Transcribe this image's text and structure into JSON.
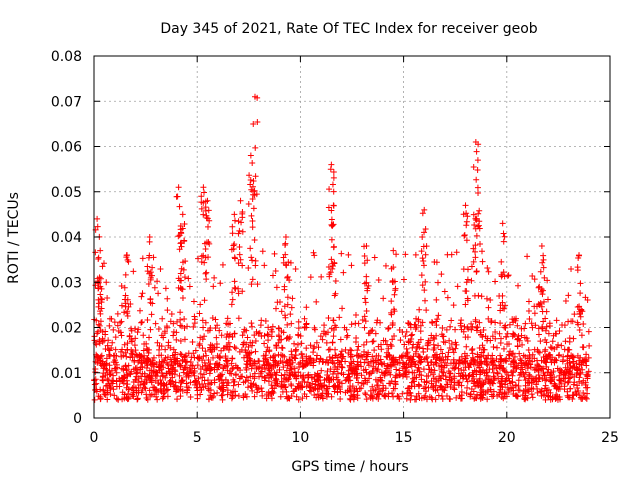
{
  "chart_data": {
    "type": "scatter",
    "title": "Day 345 of 2021, Rate Of TEC Index for receiver geob",
    "xlabel": "GPS time / hours",
    "ylabel": "ROTI / TECUs",
    "xlim": [
      0,
      25
    ],
    "ylim": [
      0,
      0.08
    ],
    "x_ticks": [
      0,
      5,
      10,
      15,
      20,
      25
    ],
    "y_ticks": [
      0,
      0.01,
      0.02,
      0.03,
      0.04,
      0.05,
      0.06,
      0.07,
      0.08
    ],
    "x_tick_labels": [
      "0",
      "5",
      "10",
      "15",
      "20",
      "25"
    ],
    "y_tick_labels": [
      "0",
      "0.01",
      "0.02",
      "0.03",
      "0.04",
      "0.05",
      "0.06",
      "0.07",
      "0.08"
    ],
    "grid": true,
    "marker": "+",
    "color": "#ff0000",
    "series": [
      {
        "name": "ROTI",
        "x_range": [
          0,
          24
        ],
        "baseline_mean": 0.009,
        "note": "dense band of points between ~0.004 and ~0.02 across the full day",
        "peaks": [
          {
            "x": 0.15,
            "y": 0.044
          },
          {
            "x": 0.3,
            "y": 0.037
          },
          {
            "x": 1.6,
            "y": 0.036
          },
          {
            "x": 2.7,
            "y": 0.04
          },
          {
            "x": 4.1,
            "y": 0.051
          },
          {
            "x": 4.3,
            "y": 0.045
          },
          {
            "x": 5.3,
            "y": 0.051
          },
          {
            "x": 5.5,
            "y": 0.048
          },
          {
            "x": 6.8,
            "y": 0.045
          },
          {
            "x": 7.1,
            "y": 0.048
          },
          {
            "x": 7.6,
            "y": 0.058
          },
          {
            "x": 7.8,
            "y": 0.071
          },
          {
            "x": 9.3,
            "y": 0.04
          },
          {
            "x": 11.5,
            "y": 0.056
          },
          {
            "x": 11.6,
            "y": 0.047
          },
          {
            "x": 13.2,
            "y": 0.038
          },
          {
            "x": 14.5,
            "y": 0.037
          },
          {
            "x": 16.0,
            "y": 0.046
          },
          {
            "x": 18.0,
            "y": 0.047
          },
          {
            "x": 18.5,
            "y": 0.061
          },
          {
            "x": 18.6,
            "y": 0.057
          },
          {
            "x": 19.8,
            "y": 0.043
          },
          {
            "x": 21.7,
            "y": 0.038
          },
          {
            "x": 23.5,
            "y": 0.036
          }
        ]
      }
    ]
  }
}
